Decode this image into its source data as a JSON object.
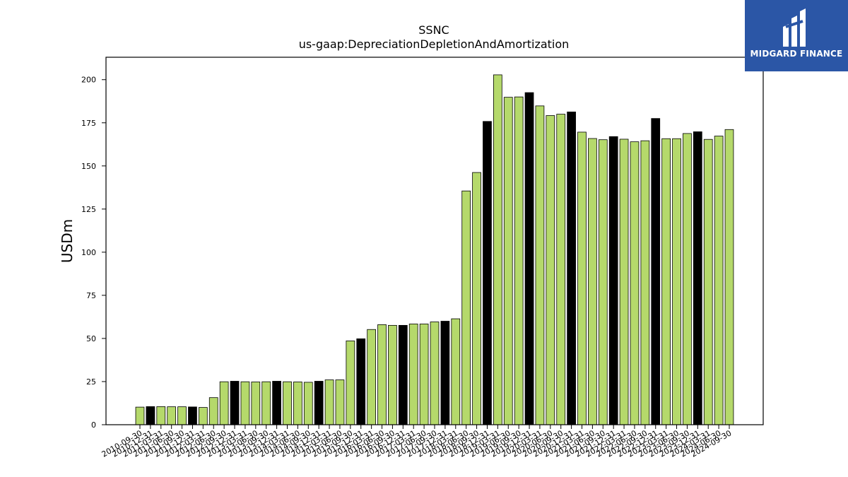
{
  "chart_data": {
    "type": "bar",
    "title": "SSNC",
    "subtitle": "us-gaap:DepreciationDepletionAndAmortization",
    "ylabel": "USDm",
    "xlabel": "",
    "ylim": [
      0,
      213
    ],
    "yticks": [
      0,
      25,
      50,
      75,
      100,
      125,
      150,
      175,
      200
    ],
    "grid": false,
    "colors": {
      "quarter": "#b5d96b",
      "year_end": "#000000",
      "edge": "#000000"
    },
    "categories": [
      "2010-09-30",
      "2010-12-31",
      "2011-03-31",
      "2011-06-30",
      "2011-09-30",
      "2011-12-31",
      "2012-03-31",
      "2012-06-30",
      "2012-09-30",
      "2012-12-31",
      "2013-03-31",
      "2013-06-30",
      "2013-09-30",
      "2013-12-31",
      "2014-03-31",
      "2014-06-30",
      "2014-09-30",
      "2014-12-31",
      "2015-03-31",
      "2015-06-30",
      "2015-09-30",
      "2015-12-31",
      "2016-03-31",
      "2016-06-30",
      "2016-09-30",
      "2016-12-31",
      "2017-03-31",
      "2017-06-30",
      "2017-09-30",
      "2017-12-31",
      "2018-03-31",
      "2018-06-30",
      "2018-09-30",
      "2018-12-31",
      "2019-03-31",
      "2019-06-30",
      "2019-09-30",
      "2019-12-31",
      "2020-03-31",
      "2020-06-30",
      "2020-09-30",
      "2020-12-31",
      "2021-03-31",
      "2021-06-30",
      "2021-09-30",
      "2021-12-31",
      "2022-03-31",
      "2022-06-30",
      "2022-09-30",
      "2022-12-31",
      "2023-03-31",
      "2023-06-30",
      "2023-09-30",
      "2023-12-31",
      "2024-03-31",
      "2024-06-30",
      "2024-09-30"
    ],
    "values": [
      10.2,
      10.5,
      10.5,
      10.4,
      10.4,
      10.3,
      10.0,
      15.7,
      24.9,
      25.2,
      24.9,
      24.8,
      24.9,
      25.2,
      24.9,
      24.8,
      24.6,
      25.2,
      26.0,
      26.0,
      48.6,
      49.8,
      55.2,
      58.0,
      57.6,
      57.6,
      58.4,
      58.4,
      59.6,
      60.0,
      61.4,
      135.5,
      146.2,
      175.8,
      202.8,
      189.8,
      190.0,
      192.5,
      184.8,
      179.2,
      180.0,
      181.3,
      169.6,
      165.9,
      165.2,
      167.0,
      165.5,
      164.0,
      164.6,
      177.5,
      165.8,
      165.8,
      168.8,
      169.8,
      165.4,
      167.3,
      171.1
    ],
    "year_end": [
      false,
      true,
      false,
      false,
      false,
      true,
      false,
      false,
      false,
      true,
      false,
      false,
      false,
      true,
      false,
      false,
      false,
      true,
      false,
      false,
      false,
      true,
      false,
      false,
      false,
      true,
      false,
      false,
      false,
      true,
      false,
      false,
      false,
      true,
      false,
      false,
      false,
      true,
      false,
      false,
      false,
      true,
      false,
      false,
      false,
      true,
      false,
      false,
      false,
      true,
      false,
      false,
      false,
      true,
      false,
      false,
      false
    ]
  },
  "logo": {
    "text": "MIDGARD FINANCE",
    "icon": "midgard-logo-icon"
  }
}
